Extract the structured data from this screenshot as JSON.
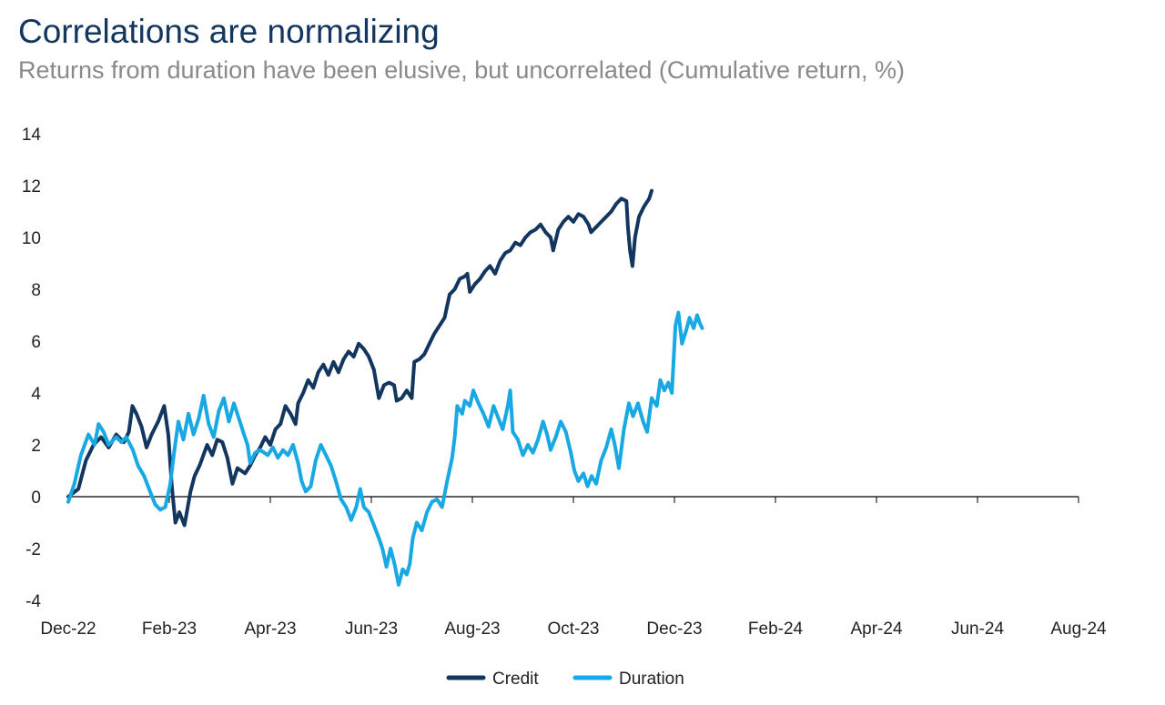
{
  "chart_data": {
    "type": "line",
    "title": "Correlations are normalizing",
    "subtitle": "Returns from duration have been elusive, but uncorrelated (Cumulative return, %)",
    "xlabel": "",
    "ylabel": "",
    "ylim": [
      -4,
      14
    ],
    "yticks": [
      "14",
      "12",
      "10",
      "8",
      "6",
      "4",
      "2",
      "0",
      "-2",
      "-4"
    ],
    "xticks": [
      "Dec-22",
      "Feb-23",
      "Apr-23",
      "Jun-23",
      "Aug-23",
      "Oct-23",
      "Dec-23",
      "Feb-24",
      "Apr-24",
      "Jun-24",
      "Aug-24"
    ],
    "grid": false,
    "legend_position": "bottom-center",
    "series": [
      {
        "name": "Credit",
        "color": "#13365f",
        "points": [
          [
            0,
            0
          ],
          [
            0.2,
            0.3
          ],
          [
            0.35,
            1.4
          ],
          [
            0.5,
            2.0
          ],
          [
            0.65,
            2.3
          ],
          [
            0.8,
            1.9
          ],
          [
            0.95,
            2.4
          ],
          [
            1.1,
            2.1
          ],
          [
            1.2,
            2.5
          ],
          [
            1.27,
            3.5
          ],
          [
            1.35,
            3.2
          ],
          [
            1.45,
            2.7
          ],
          [
            1.55,
            1.9
          ],
          [
            1.65,
            2.4
          ],
          [
            1.78,
            2.9
          ],
          [
            1.9,
            3.5
          ],
          [
            1.98,
            2.4
          ],
          [
            2.05,
            0.4
          ],
          [
            2.12,
            -1.0
          ],
          [
            2.2,
            -0.6
          ],
          [
            2.3,
            -1.1
          ],
          [
            2.42,
            0.2
          ],
          [
            2.5,
            0.8
          ],
          [
            2.6,
            1.2
          ],
          [
            2.75,
            2.0
          ],
          [
            2.85,
            1.6
          ],
          [
            2.95,
            2.2
          ],
          [
            3.05,
            2.1
          ],
          [
            3.15,
            1.5
          ],
          [
            3.25,
            0.5
          ],
          [
            3.35,
            1.1
          ],
          [
            3.5,
            0.9
          ],
          [
            3.6,
            1.2
          ],
          [
            3.7,
            1.6
          ],
          [
            3.8,
            1.9
          ],
          [
            3.9,
            2.3
          ],
          [
            4.0,
            2.0
          ],
          [
            4.1,
            2.6
          ],
          [
            4.2,
            2.8
          ],
          [
            4.3,
            3.5
          ],
          [
            4.4,
            3.2
          ],
          [
            4.5,
            2.8
          ],
          [
            4.55,
            3.6
          ],
          [
            4.65,
            4.0
          ],
          [
            4.75,
            4.5
          ],
          [
            4.85,
            4.2
          ],
          [
            4.95,
            4.8
          ],
          [
            5.05,
            5.1
          ],
          [
            5.15,
            4.7
          ],
          [
            5.25,
            5.2
          ],
          [
            5.35,
            4.8
          ],
          [
            5.45,
            5.3
          ],
          [
            5.55,
            5.6
          ],
          [
            5.65,
            5.4
          ],
          [
            5.75,
            5.9
          ],
          [
            5.85,
            5.7
          ],
          [
            5.95,
            5.4
          ],
          [
            6.05,
            4.9
          ],
          [
            6.15,
            3.8
          ],
          [
            6.25,
            4.3
          ],
          [
            6.35,
            4.4
          ],
          [
            6.45,
            4.3
          ],
          [
            6.5,
            3.7
          ],
          [
            6.6,
            3.8
          ],
          [
            6.7,
            4.1
          ],
          [
            6.8,
            3.8
          ],
          [
            6.85,
            5.2
          ],
          [
            6.95,
            5.3
          ],
          [
            7.05,
            5.5
          ],
          [
            7.15,
            5.9
          ],
          [
            7.25,
            6.3
          ],
          [
            7.35,
            6.6
          ],
          [
            7.45,
            6.9
          ],
          [
            7.55,
            7.8
          ],
          [
            7.65,
            8.0
          ],
          [
            7.75,
            8.4
          ],
          [
            7.85,
            8.5
          ],
          [
            7.9,
            8.6
          ],
          [
            7.95,
            7.9
          ],
          [
            8.05,
            8.2
          ],
          [
            8.15,
            8.4
          ],
          [
            8.25,
            8.7
          ],
          [
            8.35,
            8.9
          ],
          [
            8.45,
            8.6
          ],
          [
            8.55,
            9.1
          ],
          [
            8.65,
            9.4
          ],
          [
            8.75,
            9.5
          ],
          [
            8.85,
            9.8
          ],
          [
            8.95,
            9.7
          ],
          [
            9.05,
            10.0
          ],
          [
            9.15,
            10.2
          ],
          [
            9.25,
            10.3
          ],
          [
            9.35,
            10.5
          ],
          [
            9.45,
            10.2
          ],
          [
            9.55,
            10.0
          ],
          [
            9.6,
            9.5
          ],
          [
            9.7,
            10.3
          ],
          [
            9.8,
            10.6
          ],
          [
            9.9,
            10.8
          ],
          [
            10.0,
            10.6
          ],
          [
            10.1,
            10.9
          ],
          [
            10.2,
            10.8
          ],
          [
            10.3,
            10.5
          ],
          [
            10.35,
            10.2
          ],
          [
            10.45,
            10.4
          ],
          [
            10.55,
            10.6
          ],
          [
            10.65,
            10.8
          ],
          [
            10.75,
            11.0
          ],
          [
            10.85,
            11.3
          ],
          [
            10.95,
            11.5
          ],
          [
            11.05,
            11.4
          ],
          [
            11.08,
            10.4
          ],
          [
            11.12,
            9.5
          ],
          [
            11.17,
            8.9
          ],
          [
            11.22,
            10.0
          ],
          [
            11.3,
            10.8
          ],
          [
            11.4,
            11.2
          ],
          [
            11.5,
            11.5
          ],
          [
            11.55,
            11.8
          ]
        ]
      },
      {
        "name": "Duration",
        "color": "#18a9e4",
        "points": [
          [
            0,
            -0.2
          ],
          [
            0.12,
            0.5
          ],
          [
            0.25,
            1.6
          ],
          [
            0.4,
            2.4
          ],
          [
            0.52,
            2.0
          ],
          [
            0.6,
            2.8
          ],
          [
            0.7,
            2.5
          ],
          [
            0.8,
            2.0
          ],
          [
            0.95,
            2.3
          ],
          [
            1.05,
            2.1
          ],
          [
            1.15,
            2.3
          ],
          [
            1.28,
            1.8
          ],
          [
            1.38,
            1.2
          ],
          [
            1.5,
            0.8
          ],
          [
            1.6,
            0.3
          ],
          [
            1.72,
            -0.3
          ],
          [
            1.82,
            -0.5
          ],
          [
            1.92,
            -0.4
          ],
          [
            2.02,
            0.5
          ],
          [
            2.1,
            1.8
          ],
          [
            2.18,
            2.9
          ],
          [
            2.28,
            2.2
          ],
          [
            2.38,
            3.2
          ],
          [
            2.48,
            2.4
          ],
          [
            2.58,
            3.0
          ],
          [
            2.68,
            3.9
          ],
          [
            2.78,
            2.8
          ],
          [
            2.88,
            2.3
          ],
          [
            2.98,
            3.3
          ],
          [
            3.08,
            3.8
          ],
          [
            3.18,
            2.9
          ],
          [
            3.28,
            3.6
          ],
          [
            3.38,
            3.0
          ],
          [
            3.48,
            2.4
          ],
          [
            3.55,
            2.0
          ],
          [
            3.6,
            1.3
          ],
          [
            3.7,
            1.7
          ],
          [
            3.8,
            1.8
          ],
          [
            3.95,
            1.6
          ],
          [
            4.05,
            1.9
          ],
          [
            4.15,
            1.5
          ],
          [
            4.25,
            1.8
          ],
          [
            4.35,
            1.6
          ],
          [
            4.45,
            2.0
          ],
          [
            4.55,
            1.3
          ],
          [
            4.62,
            0.6
          ],
          [
            4.7,
            0.2
          ],
          [
            4.8,
            0.4
          ],
          [
            4.9,
            1.4
          ],
          [
            5.0,
            2.0
          ],
          [
            5.1,
            1.6
          ],
          [
            5.2,
            1.2
          ],
          [
            5.3,
            0.6
          ],
          [
            5.4,
            -0.1
          ],
          [
            5.5,
            -0.4
          ],
          [
            5.6,
            -0.9
          ],
          [
            5.7,
            -0.4
          ],
          [
            5.78,
            0.3
          ],
          [
            5.85,
            -0.4
          ],
          [
            5.95,
            -0.6
          ],
          [
            6.05,
            -1.1
          ],
          [
            6.15,
            -1.6
          ],
          [
            6.22,
            -2.0
          ],
          [
            6.3,
            -2.7
          ],
          [
            6.38,
            -2.0
          ],
          [
            6.46,
            -2.6
          ],
          [
            6.54,
            -3.4
          ],
          [
            6.62,
            -2.8
          ],
          [
            6.7,
            -3.0
          ],
          [
            6.76,
            -2.6
          ],
          [
            6.82,
            -1.6
          ],
          [
            6.9,
            -1.0
          ],
          [
            7.0,
            -1.3
          ],
          [
            7.1,
            -0.6
          ],
          [
            7.2,
            -0.2
          ],
          [
            7.3,
            -0.1
          ],
          [
            7.4,
            -0.4
          ],
          [
            7.5,
            0.6
          ],
          [
            7.6,
            1.5
          ],
          [
            7.65,
            2.3
          ],
          [
            7.7,
            3.5
          ],
          [
            7.8,
            3.2
          ],
          [
            7.85,
            3.7
          ],
          [
            7.95,
            3.5
          ],
          [
            8.02,
            4.1
          ],
          [
            8.12,
            3.6
          ],
          [
            8.22,
            3.2
          ],
          [
            8.32,
            2.7
          ],
          [
            8.42,
            3.5
          ],
          [
            8.52,
            3.0
          ],
          [
            8.6,
            2.6
          ],
          [
            8.7,
            3.5
          ],
          [
            8.75,
            4.1
          ],
          [
            8.8,
            2.5
          ],
          [
            8.9,
            2.2
          ],
          [
            9.0,
            1.6
          ],
          [
            9.1,
            2.0
          ],
          [
            9.2,
            1.7
          ],
          [
            9.3,
            2.2
          ],
          [
            9.4,
            2.9
          ],
          [
            9.48,
            2.4
          ],
          [
            9.55,
            1.8
          ],
          [
            9.65,
            2.3
          ],
          [
            9.75,
            2.9
          ],
          [
            9.85,
            2.5
          ],
          [
            9.95,
            1.7
          ],
          [
            10.02,
            1.0
          ],
          [
            10.1,
            0.6
          ],
          [
            10.2,
            0.9
          ],
          [
            10.28,
            0.4
          ],
          [
            10.36,
            0.8
          ],
          [
            10.45,
            0.5
          ],
          [
            10.55,
            1.4
          ],
          [
            10.65,
            1.9
          ],
          [
            10.75,
            2.6
          ],
          [
            10.82,
            2.0
          ],
          [
            10.9,
            1.1
          ],
          [
            11.0,
            2.6
          ],
          [
            11.1,
            3.6
          ],
          [
            11.18,
            3.1
          ],
          [
            11.28,
            3.6
          ],
          [
            11.38,
            2.9
          ],
          [
            11.46,
            2.5
          ],
          [
            11.55,
            3.8
          ],
          [
            11.65,
            3.5
          ],
          [
            11.72,
            4.5
          ],
          [
            11.8,
            4.1
          ],
          [
            11.88,
            4.4
          ],
          [
            11.95,
            4.0
          ],
          [
            12.02,
            6.6
          ],
          [
            12.08,
            7.1
          ],
          [
            12.15,
            5.9
          ],
          [
            12.23,
            6.4
          ],
          [
            12.3,
            6.9
          ],
          [
            12.38,
            6.5
          ],
          [
            12.45,
            7.0
          ],
          [
            12.5,
            6.7
          ],
          [
            12.55,
            6.5
          ]
        ]
      }
    ]
  }
}
